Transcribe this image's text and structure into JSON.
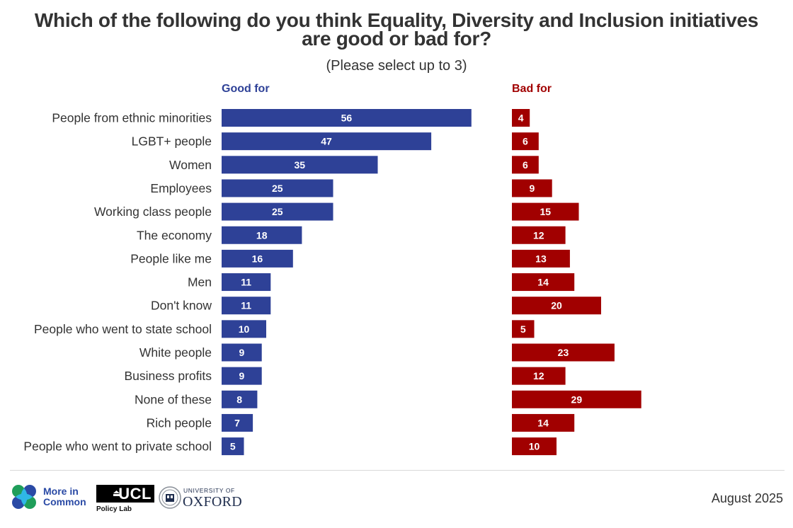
{
  "header": {
    "title_line1": "Which of the following do you think Equality, Diversity and Inclusion initiatives",
    "title_line2": "are good or bad for?",
    "subtitle": "(Please select up to 3)"
  },
  "colors": {
    "good": "#2e4197",
    "bad": "#a10000",
    "label_text": "#333333",
    "value_text": "#ffffff"
  },
  "chart_data": {
    "type": "bar",
    "orientation": "horizontal",
    "title": "Which of the following do you think Equality, Diversity and Inclusion initiatives are good or bad for?",
    "subtitle": "(Please select up to 3)",
    "xlabel": "",
    "ylabel": "",
    "unit": "%",
    "grid": false,
    "legend": "none (panel headers)",
    "categories": [
      "People from ethnic minorities",
      "LGBT+ people",
      "Women",
      "Employees",
      "Working class people",
      "The economy",
      "People like me",
      "Men",
      "Don't know",
      "People who went to state school",
      "White people",
      "Business profits",
      "None of these",
      "Rich people",
      "People who went to private school"
    ],
    "series": [
      {
        "name": "Good for",
        "color": "#2e4197",
        "values": [
          56,
          47,
          35,
          25,
          25,
          18,
          16,
          11,
          11,
          10,
          9,
          9,
          8,
          7,
          5
        ]
      },
      {
        "name": "Bad for",
        "color": "#a10000",
        "values": [
          4,
          6,
          6,
          9,
          15,
          12,
          13,
          14,
          20,
          5,
          23,
          12,
          29,
          14,
          10
        ]
      }
    ],
    "xlim": [
      0,
      56
    ]
  },
  "footer": {
    "date": "August 2025",
    "logos": {
      "more_in_common_line1": "More in",
      "more_in_common_line2": "Common",
      "ucl": "UCL",
      "ucl_sub": "Policy Lab",
      "oxford_small": "UNIVERSITY OF",
      "oxford_big": "OXFORD"
    }
  }
}
